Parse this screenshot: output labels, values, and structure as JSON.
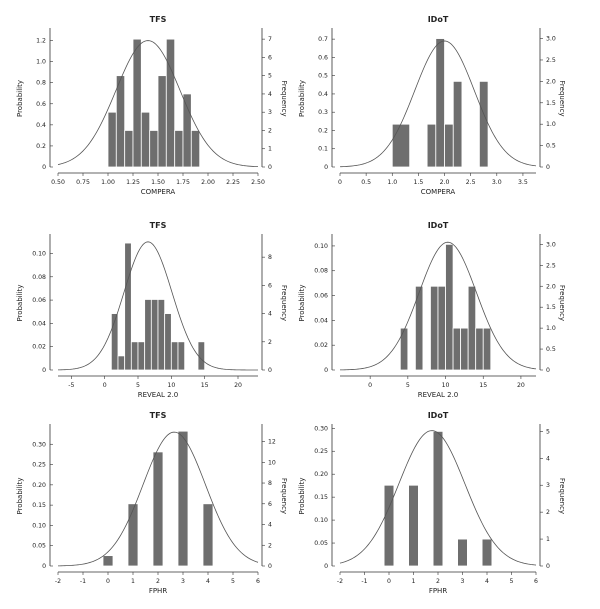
{
  "colors": {
    "bar_fill": "#6e6e6e",
    "bar_stroke": "#ffffff",
    "curve": "#555555",
    "axis": "#333333"
  },
  "chart_data": [
    {
      "type": "histogram",
      "title": "TFS",
      "xlabel": "COMPERA",
      "ylabel_left": "Probability",
      "ylabel_right": "Frequency",
      "xlim": [
        0.5,
        2.5
      ],
      "xticks": [
        0.5,
        0.75,
        1.0,
        1.25,
        1.5,
        1.75,
        2.0,
        2.25,
        2.5
      ],
      "xtick_labels": [
        "0.50",
        "0.75",
        "1.00",
        "1.25",
        "1.50",
        "1.75",
        "2.00",
        "2.25",
        "2.50"
      ],
      "left_ylim": [
        0,
        1.3
      ],
      "left_yticks": [
        0,
        0.2,
        0.4,
        0.6,
        0.8,
        1.0,
        1.2
      ],
      "left_ytick_labels": [
        "0",
        "0.2",
        "0.4",
        "0.6",
        "0.8",
        "1.0",
        "1.2"
      ],
      "right_ylim": [
        0,
        7.5
      ],
      "right_yticks": [
        0,
        1,
        2,
        3,
        4,
        5,
        6,
        7
      ],
      "right_ytick_labels": [
        "0",
        "1",
        "2",
        "3",
        "4",
        "5",
        "6",
        "7"
      ],
      "bins": [
        [
          1.0,
          1.083
        ],
        [
          1.083,
          1.167
        ],
        [
          1.167,
          1.25
        ],
        [
          1.25,
          1.333
        ],
        [
          1.333,
          1.417
        ],
        [
          1.417,
          1.5
        ],
        [
          1.5,
          1.583
        ],
        [
          1.583,
          1.667
        ],
        [
          1.667,
          1.75
        ],
        [
          1.75,
          1.833
        ],
        [
          1.833,
          1.917
        ],
        [
          1.917,
          2.0
        ]
      ],
      "frequencies": [
        3,
        5,
        2,
        7,
        3,
        2,
        5,
        7,
        2,
        4,
        2,
        0
      ],
      "normal_curve": {
        "mean": 1.4,
        "sd": 0.32,
        "peak": 1.2
      }
    },
    {
      "type": "histogram",
      "title": "IDoT",
      "xlabel": "COMPERA",
      "ylabel_left": "Probability",
      "ylabel_right": "Frequency",
      "xlim": [
        0,
        3.75
      ],
      "xticks": [
        0,
        0.5,
        1.0,
        1.5,
        2.0,
        2.5,
        3.0,
        3.5
      ],
      "xtick_labels": [
        "0",
        "0.5",
        "1.0",
        "1.5",
        "2.0",
        "2.5",
        "3.0",
        "3.5"
      ],
      "left_ylim": [
        0,
        0.75
      ],
      "left_yticks": [
        0,
        0.1,
        0.2,
        0.3,
        0.4,
        0.5,
        0.6,
        0.7
      ],
      "left_ytick_labels": [
        "0",
        "0.1",
        "0.2",
        "0.3",
        "0.4",
        "0.5",
        "0.6",
        "0.7"
      ],
      "right_ylim": [
        0,
        3.2
      ],
      "right_yticks": [
        0,
        0.5,
        1.0,
        1.5,
        2.0,
        2.5,
        3.0
      ],
      "right_ytick_labels": [
        "0",
        "0.5",
        "1.0",
        "1.5",
        "2.0",
        "2.5",
        "3.0"
      ],
      "bins": [
        [
          1.0,
          1.333
        ],
        [
          1.333,
          1.667
        ],
        [
          1.667,
          1.833
        ],
        [
          1.833,
          2.0
        ],
        [
          2.0,
          2.167
        ],
        [
          2.167,
          2.333
        ],
        [
          2.333,
          2.667
        ],
        [
          2.667,
          2.833
        ]
      ],
      "frequencies": [
        1,
        0,
        1,
        3,
        1,
        2,
        0,
        2
      ],
      "normal_curve": {
        "mean": 2.0,
        "sd": 0.57,
        "peak": 0.69
      }
    },
    {
      "type": "histogram",
      "title": "TFS",
      "xlabel": "REVEAL 2.0",
      "ylabel_left": "Probability",
      "ylabel_right": "Frequency",
      "xlim": [
        -7,
        23
      ],
      "xticks": [
        -5,
        0,
        5,
        10,
        15,
        20
      ],
      "xtick_labels": [
        "-5",
        "0",
        "5",
        "10",
        "15",
        "20"
      ],
      "left_ylim": [
        0,
        0.115
      ],
      "left_yticks": [
        0,
        0.02,
        0.04,
        0.06,
        0.08,
        0.1
      ],
      "left_ytick_labels": [
        "0",
        "0.02",
        "0.04",
        "0.06",
        "0.08",
        "0.10"
      ],
      "right_ylim": [
        0,
        9.5
      ],
      "right_yticks": [
        0,
        2,
        4,
        6,
        8
      ],
      "right_ytick_labels": [
        "0",
        "2",
        "4",
        "6",
        "8"
      ],
      "bins": [
        [
          1,
          2
        ],
        [
          2,
          3
        ],
        [
          3,
          4
        ],
        [
          4,
          5
        ],
        [
          5,
          6
        ],
        [
          6,
          7
        ],
        [
          7,
          8
        ],
        [
          8,
          9
        ],
        [
          9,
          10
        ],
        [
          10,
          11
        ],
        [
          11,
          12
        ],
        [
          12,
          13
        ],
        [
          13,
          14
        ],
        [
          14,
          15
        ]
      ],
      "frequencies": [
        4,
        1,
        9,
        2,
        2,
        5,
        5,
        5,
        4,
        2,
        2,
        0,
        0,
        2
      ],
      "normal_curve": {
        "mean": 6.5,
        "sd": 3.6,
        "peak": 0.11
      }
    },
    {
      "type": "histogram",
      "title": "IDoT",
      "xlabel": "REVEAL 2.0",
      "ylabel_left": "Probability",
      "ylabel_right": "Frequency",
      "xlim": [
        -4,
        22
      ],
      "xticks": [
        0,
        5,
        10,
        15,
        20
      ],
      "xtick_labels": [
        "0",
        "5",
        "10",
        "15",
        "20"
      ],
      "left_ylim": [
        0,
        0.108
      ],
      "left_yticks": [
        0,
        0.02,
        0.04,
        0.06,
        0.08,
        0.1
      ],
      "left_ytick_labels": [
        "0",
        "0.02",
        "0.04",
        "0.06",
        "0.08",
        "0.10"
      ],
      "right_ylim": [
        0,
        3.2
      ],
      "right_yticks": [
        0,
        0.5,
        1.0,
        1.5,
        2.0,
        2.5,
        3.0
      ],
      "right_ytick_labels": [
        "0",
        "0.5",
        "1.0",
        "1.5",
        "2.0",
        "2.5",
        "3.0"
      ],
      "bins": [
        [
          4,
          5
        ],
        [
          5,
          6
        ],
        [
          6,
          7
        ],
        [
          7,
          8
        ],
        [
          8,
          9
        ],
        [
          9,
          10
        ],
        [
          10,
          11
        ],
        [
          11,
          12
        ],
        [
          12,
          13
        ],
        [
          13,
          14
        ],
        [
          14,
          15
        ],
        [
          15,
          16
        ]
      ],
      "frequencies": [
        1,
        0,
        2,
        0,
        2,
        2,
        3,
        1,
        1,
        2,
        1,
        1
      ],
      "normal_curve": {
        "mean": 10.3,
        "sd": 3.8,
        "peak": 0.103
      }
    },
    {
      "type": "histogram",
      "title": "TFS",
      "xlabel": "FPHR",
      "ylabel_left": "Probability",
      "ylabel_right": "Frequency",
      "xlim": [
        -2,
        6
      ],
      "xticks": [
        -2,
        -1,
        0,
        1,
        2,
        3,
        4,
        5,
        6
      ],
      "xtick_labels": [
        "-2",
        "-1",
        "0",
        "1",
        "2",
        "3",
        "4",
        "5",
        "6"
      ],
      "left_ylim": [
        0,
        0.345
      ],
      "left_yticks": [
        0,
        0.05,
        0.1,
        0.15,
        0.2,
        0.25,
        0.3
      ],
      "left_ytick_labels": [
        "0",
        "0.05",
        "0.10",
        "0.15",
        "0.20",
        "0.25",
        "0.30"
      ],
      "right_ylim": [
        0,
        13.5
      ],
      "right_yticks": [
        0,
        2,
        4,
        6,
        8,
        10,
        12
      ],
      "right_ytick_labels": [
        "0",
        "2",
        "4",
        "6",
        "8",
        "10",
        "12"
      ],
      "bins": [
        [
          -0.2,
          0.2
        ],
        [
          0.8,
          1.2
        ],
        [
          1.8,
          2.2
        ],
        [
          2.8,
          3.2
        ],
        [
          3.8,
          4.2
        ]
      ],
      "frequencies": [
        1,
        6,
        11,
        13,
        6
      ],
      "normal_curve": {
        "mean": 2.65,
        "sd": 1.25,
        "peak": 0.33
      }
    },
    {
      "type": "histogram",
      "title": "IDoT",
      "xlabel": "FPHR",
      "ylabel_left": "Probability",
      "ylabel_right": "Frequency",
      "xlim": [
        -2,
        6
      ],
      "xticks": [
        -2,
        -1,
        0,
        1,
        2,
        3,
        4,
        5,
        6
      ],
      "xtick_labels": [
        "-2",
        "-1",
        "0",
        "1",
        "2",
        "3",
        "4",
        "5",
        "6"
      ],
      "left_ylim": [
        0,
        0.305
      ],
      "left_yticks": [
        0,
        0.05,
        0.1,
        0.15,
        0.2,
        0.25,
        0.3
      ],
      "left_ytick_labels": [
        "0",
        "0.05",
        "0.10",
        "0.15",
        "0.20",
        "0.25",
        "0.30"
      ],
      "right_ylim": [
        0,
        5.2
      ],
      "right_yticks": [
        0,
        1,
        2,
        3,
        4,
        5
      ],
      "right_ytick_labels": [
        "0",
        "1",
        "2",
        "3",
        "4",
        "5"
      ],
      "bins": [
        [
          -0.2,
          0.2
        ],
        [
          0.8,
          1.2
        ],
        [
          1.8,
          2.2
        ],
        [
          2.8,
          3.2
        ],
        [
          3.8,
          4.2
        ]
      ],
      "frequencies": [
        3,
        3,
        5,
        1,
        1
      ],
      "normal_curve": {
        "mean": 1.75,
        "sd": 1.35,
        "peak": 0.295
      }
    }
  ]
}
